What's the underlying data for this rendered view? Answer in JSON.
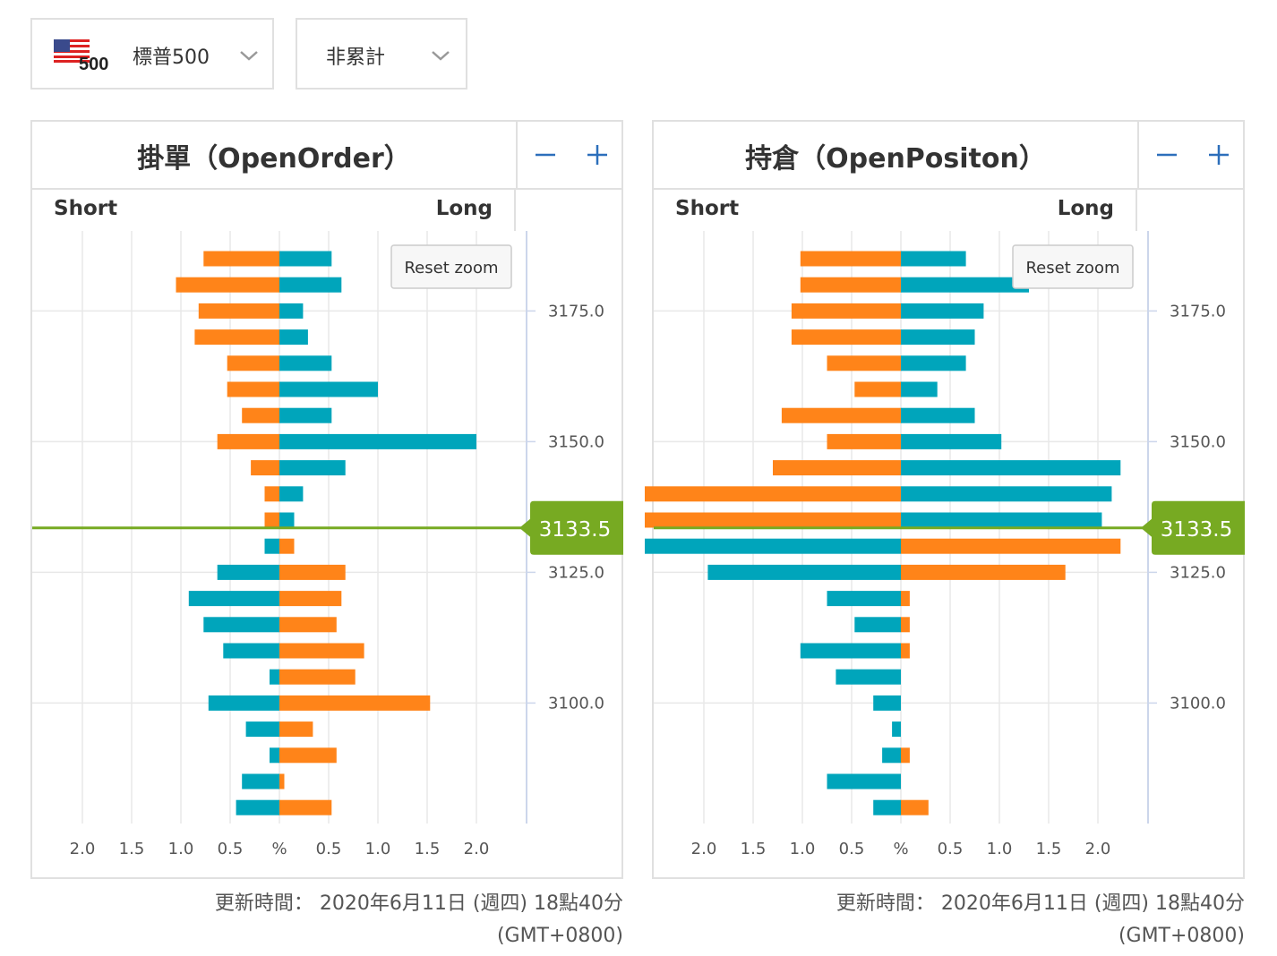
{
  "selectors": {
    "instrument": {
      "flag_text": "500",
      "label": "標普500"
    },
    "mode": {
      "label": "非累計"
    }
  },
  "colors": {
    "orange": "#ff8419",
    "teal": "#00a5bb",
    "price_line": "#77aa22",
    "grid": "#e8e8e8"
  },
  "panels": [
    {
      "title": "掛單（OpenOrder）",
      "short_label": "Short",
      "long_label": "Long",
      "reset_zoom": "Reset zoom",
      "timestamp": "更新時間： 2020年6月11日 (週四) 18點40分",
      "timezone": "(GMT+0800)"
    },
    {
      "title": "持倉（OpenPositon）",
      "short_label": "Short",
      "long_label": "Long",
      "reset_zoom": "Reset zoom",
      "timestamp": "更新時間： 2020年6月11日 (週四) 18點40分",
      "timezone": "(GMT+0800)"
    }
  ],
  "chart_data": [
    {
      "type": "bar",
      "orientation": "horizontal-diverging",
      "title": "掛單（OpenOrder）",
      "xlabel": "%",
      "x_ticks": [
        "2.0",
        "1.5",
        "1.0",
        "0.5",
        "%",
        "0.5",
        "1.0",
        "1.5",
        "2.0"
      ],
      "y_tick_labels": [
        "3175.0",
        "3150.0",
        "3125.0",
        "3100.0"
      ],
      "current_price": "3133.5",
      "price_levels": [
        3185,
        3180,
        3175,
        3170,
        3165,
        3160,
        3155,
        3150,
        3145,
        3140,
        3135,
        3130,
        3125,
        3120,
        3115,
        3110,
        3105,
        3100,
        3095,
        3090,
        3085,
        3080
      ],
      "series": [
        {
          "name": "Short",
          "values": [
            -0.77,
            -1.05,
            -0.82,
            -0.86,
            -0.53,
            -0.53,
            -0.38,
            -0.63,
            -0.29,
            -0.15,
            -0.15,
            -0.15,
            -0.63,
            -0.92,
            -0.77,
            -0.57,
            -0.1,
            -0.72,
            -0.34,
            -0.1,
            -0.38,
            -0.44
          ],
          "colors": [
            "orange",
            "orange",
            "orange",
            "orange",
            "orange",
            "orange",
            "orange",
            "orange",
            "orange",
            "orange",
            "orange",
            "teal",
            "teal",
            "teal",
            "teal",
            "teal",
            "teal",
            "teal",
            "teal",
            "teal",
            "teal",
            "teal"
          ]
        },
        {
          "name": "Long",
          "values": [
            0.53,
            0.63,
            0.24,
            0.29,
            0.53,
            1.0,
            0.53,
            2.0,
            0.67,
            0.24,
            0.15,
            0.15,
            0.67,
            0.63,
            0.58,
            0.86,
            0.77,
            1.53,
            0.34,
            0.58,
            0.05,
            0.53
          ],
          "colors": [
            "teal",
            "teal",
            "teal",
            "teal",
            "teal",
            "teal",
            "teal",
            "teal",
            "teal",
            "teal",
            "teal",
            "orange",
            "orange",
            "orange",
            "orange",
            "orange",
            "orange",
            "orange",
            "orange",
            "orange",
            "orange",
            "orange"
          ]
        }
      ]
    },
    {
      "type": "bar",
      "orientation": "horizontal-diverging",
      "title": "持倉（OpenPositon）",
      "xlabel": "%",
      "x_ticks": [
        "2.0",
        "1.5",
        "1.0",
        "0.5",
        "%",
        "0.5",
        "1.0",
        "1.5",
        "2.0"
      ],
      "y_tick_labels": [
        "3175.0",
        "3150.0",
        "3125.0",
        "3100.0"
      ],
      "current_price": "3133.5",
      "price_levels": [
        3185,
        3180,
        3175,
        3170,
        3165,
        3160,
        3155,
        3150,
        3145,
        3140,
        3135,
        3130,
        3125,
        3120,
        3115,
        3110,
        3105,
        3100,
        3095,
        3090,
        3085,
        3080
      ],
      "series": [
        {
          "name": "Short",
          "values": [
            -1.02,
            -1.02,
            -1.11,
            -1.11,
            -0.75,
            -0.47,
            -1.21,
            -0.75,
            -1.3,
            -2.6,
            -2.6,
            -2.6,
            -1.96,
            -0.75,
            -0.47,
            -1.02,
            -0.66,
            -0.28,
            -0.09,
            -0.19,
            -0.75,
            -0.28
          ],
          "colors": [
            "orange",
            "orange",
            "orange",
            "orange",
            "orange",
            "orange",
            "orange",
            "orange",
            "orange",
            "orange",
            "orange",
            "teal",
            "teal",
            "teal",
            "teal",
            "teal",
            "teal",
            "teal",
            "teal",
            "teal",
            "teal",
            "teal"
          ]
        },
        {
          "name": "Long",
          "values": [
            0.66,
            1.3,
            0.84,
            0.75,
            0.66,
            0.37,
            0.75,
            1.02,
            2.23,
            2.14,
            2.04,
            2.23,
            1.67,
            0.09,
            0.09,
            0.09,
            0.0,
            0.0,
            0.0,
            0.09,
            0.0,
            0.28
          ],
          "colors": [
            "teal",
            "teal",
            "teal",
            "teal",
            "teal",
            "teal",
            "teal",
            "teal",
            "teal",
            "teal",
            "teal",
            "orange",
            "orange",
            "orange",
            "orange",
            "orange",
            "orange",
            "orange",
            "orange",
            "orange",
            "orange",
            "orange"
          ]
        }
      ]
    }
  ]
}
